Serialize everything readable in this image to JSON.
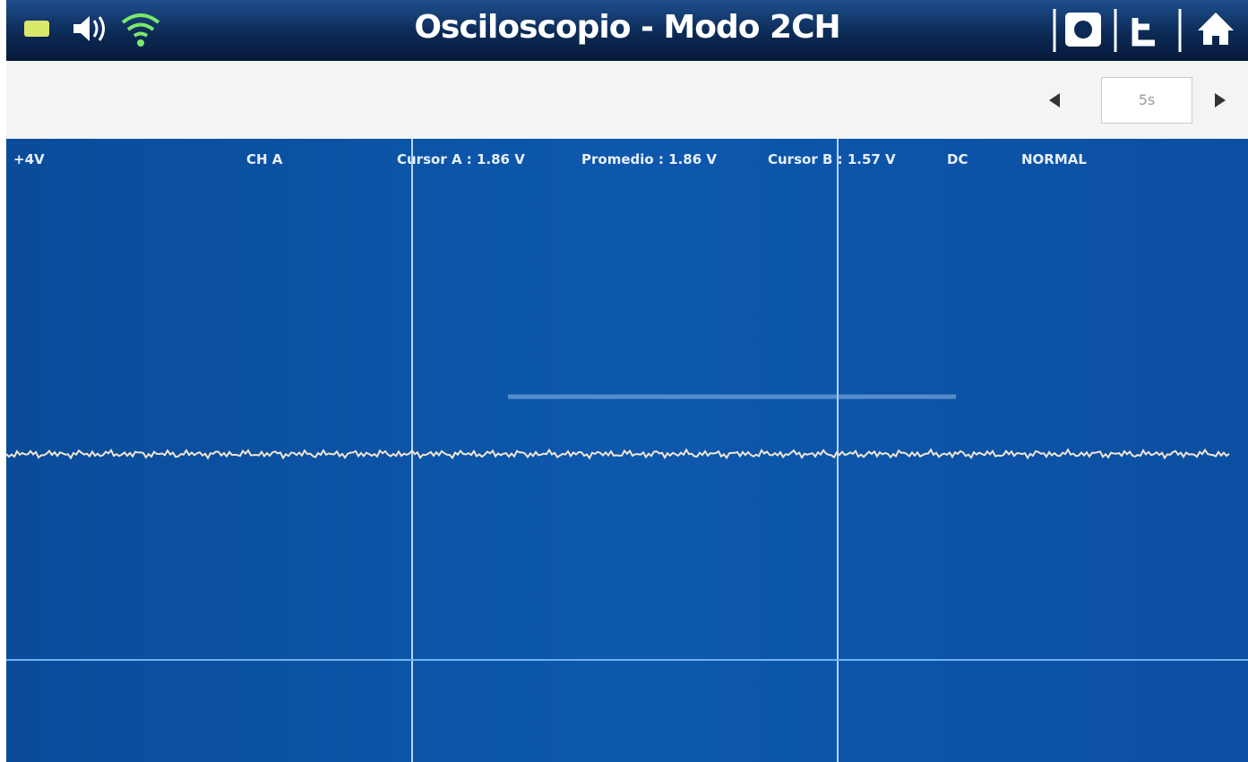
{
  "header": {
    "title": "Osciloscopio - Modo 2CH"
  },
  "toolbar": {
    "timebase": "5s"
  },
  "status": {
    "scale": "+4V",
    "channel": "CH A",
    "cursor_a": "Cursor A : 1.86 V",
    "average": "Promedio : 1.86 V",
    "cursor_b": "Cursor B : 1.57 V",
    "coupling": "DC",
    "trigger": "NORMAL"
  }
}
